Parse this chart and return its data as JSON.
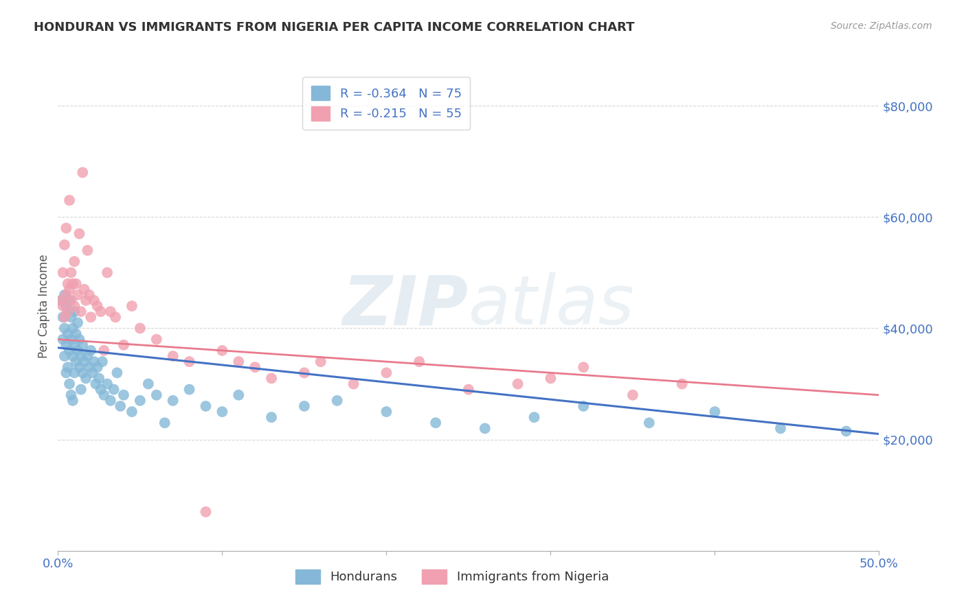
{
  "title": "HONDURAN VS IMMIGRANTS FROM NIGERIA PER CAPITA INCOME CORRELATION CHART",
  "source": "Source: ZipAtlas.com",
  "ylabel": "Per Capita Income",
  "y_ticks": [
    20000,
    40000,
    60000,
    80000
  ],
  "y_labels": [
    "$20,000",
    "$40,000",
    "$60,000",
    "$80,000"
  ],
  "xlim": [
    0.0,
    0.5
  ],
  "ylim": [
    0,
    88000
  ],
  "legend_r1": "-0.364",
  "legend_n1": "75",
  "legend_r2": "-0.215",
  "legend_n2": "55",
  "blue_scatter": "#85B8D8",
  "pink_scatter": "#F0A0B0",
  "line_blue": "#4472C4",
  "line_pink": "#E87A8C",
  "watermark_zip": "ZIP",
  "watermark_atlas": "atlas",
  "blue_line_x0": 0.0,
  "blue_line_y0": 36500,
  "blue_line_x1": 0.5,
  "blue_line_y1": 21000,
  "pink_line_x0": 0.0,
  "pink_line_y0": 38000,
  "pink_line_x1": 0.5,
  "pink_line_y1": 28000,
  "hondurans_x": [
    0.002,
    0.003,
    0.003,
    0.004,
    0.004,
    0.004,
    0.005,
    0.005,
    0.005,
    0.006,
    0.006,
    0.006,
    0.007,
    0.007,
    0.007,
    0.008,
    0.008,
    0.008,
    0.009,
    0.009,
    0.009,
    0.01,
    0.01,
    0.01,
    0.011,
    0.011,
    0.012,
    0.012,
    0.013,
    0.013,
    0.014,
    0.014,
    0.015,
    0.015,
    0.016,
    0.017,
    0.018,
    0.019,
    0.02,
    0.021,
    0.022,
    0.023,
    0.024,
    0.025,
    0.026,
    0.027,
    0.028,
    0.03,
    0.032,
    0.034,
    0.036,
    0.038,
    0.04,
    0.045,
    0.05,
    0.055,
    0.06,
    0.065,
    0.07,
    0.08,
    0.09,
    0.1,
    0.11,
    0.13,
    0.15,
    0.17,
    0.2,
    0.23,
    0.26,
    0.29,
    0.32,
    0.36,
    0.4,
    0.44,
    0.48
  ],
  "hondurans_y": [
    45000,
    42000,
    38000,
    46000,
    40000,
    35000,
    44000,
    37000,
    32000,
    43000,
    39000,
    33000,
    45000,
    36000,
    30000,
    42000,
    38000,
    28000,
    40000,
    35000,
    27000,
    43000,
    37000,
    32000,
    39000,
    34000,
    41000,
    36000,
    38000,
    33000,
    35000,
    29000,
    37000,
    32000,
    34000,
    31000,
    35000,
    33000,
    36000,
    32000,
    34000,
    30000,
    33000,
    31000,
    29000,
    34000,
    28000,
    30000,
    27000,
    29000,
    32000,
    26000,
    28000,
    25000,
    27000,
    30000,
    28000,
    23000,
    27000,
    29000,
    26000,
    25000,
    28000,
    24000,
    26000,
    27000,
    25000,
    23000,
    22000,
    24000,
    26000,
    23000,
    25000,
    22000,
    21500
  ],
  "nigeria_x": [
    0.002,
    0.003,
    0.003,
    0.004,
    0.004,
    0.005,
    0.005,
    0.006,
    0.006,
    0.007,
    0.007,
    0.008,
    0.008,
    0.009,
    0.01,
    0.01,
    0.011,
    0.012,
    0.013,
    0.014,
    0.015,
    0.016,
    0.017,
    0.018,
    0.019,
    0.02,
    0.022,
    0.024,
    0.026,
    0.028,
    0.03,
    0.032,
    0.035,
    0.04,
    0.045,
    0.05,
    0.06,
    0.07,
    0.08,
    0.09,
    0.1,
    0.11,
    0.12,
    0.13,
    0.15,
    0.16,
    0.18,
    0.2,
    0.22,
    0.25,
    0.28,
    0.3,
    0.32,
    0.35,
    0.38
  ],
  "nigeria_y": [
    45000,
    50000,
    44000,
    55000,
    42000,
    58000,
    46000,
    48000,
    43000,
    63000,
    47000,
    50000,
    45000,
    48000,
    52000,
    44000,
    48000,
    46000,
    57000,
    43000,
    68000,
    47000,
    45000,
    54000,
    46000,
    42000,
    45000,
    44000,
    43000,
    36000,
    50000,
    43000,
    42000,
    37000,
    44000,
    40000,
    38000,
    35000,
    34000,
    7000,
    36000,
    34000,
    33000,
    31000,
    32000,
    34000,
    30000,
    32000,
    34000,
    29000,
    30000,
    31000,
    33000,
    28000,
    30000
  ]
}
